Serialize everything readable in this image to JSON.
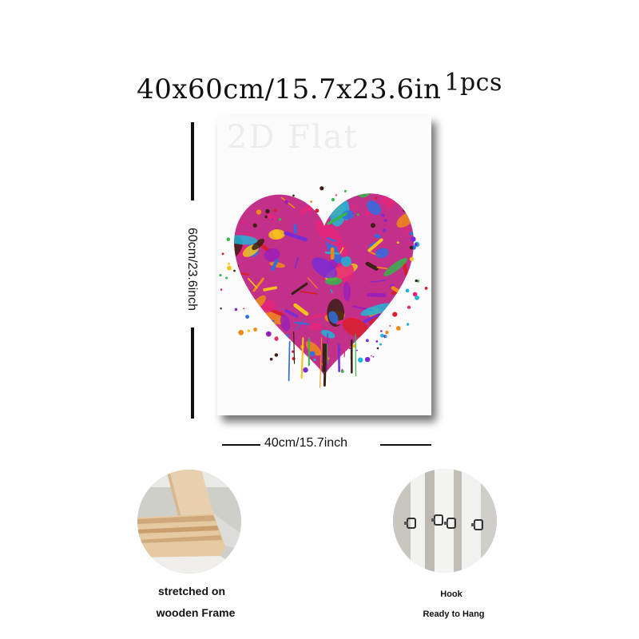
{
  "header": {
    "size_text": "40x60cm/15.7x23.6in",
    "pcs_text": "1pcs"
  },
  "canvas": {
    "watermark": "2D Flat",
    "height_label": "60cm/23.6inch",
    "width_label": "40cm/15.7inch",
    "heart_colors": [
      "#e6247a",
      "#7a2bd6",
      "#2f6fe0",
      "#f5c21a",
      "#f08a16",
      "#1fb5d6",
      "#35b54a",
      "#d81e2c",
      "#9b1fb8",
      "#3a1f12"
    ]
  },
  "details": {
    "frame": {
      "icon": "wooden-frame-corner",
      "caption_line1": "stretched on",
      "caption_line2": "wooden Frame"
    },
    "hook": {
      "icon": "hanging-hook",
      "caption_line1": "Hook",
      "caption_line2": "Ready to Hang"
    }
  }
}
